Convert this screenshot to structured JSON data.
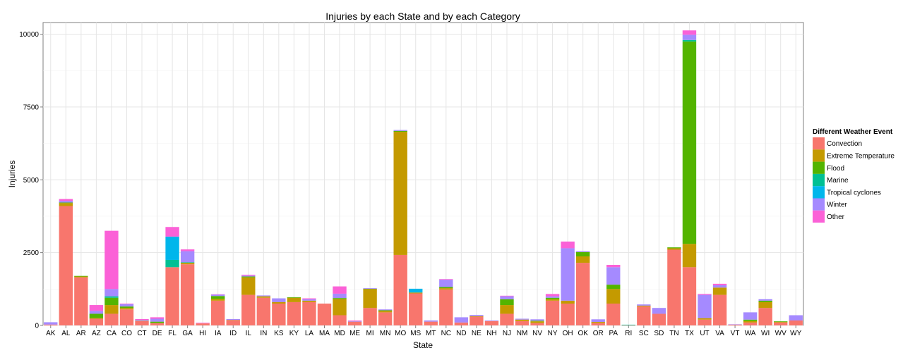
{
  "chart_data": {
    "type": "bar",
    "stacked": true,
    "title": "Injuries by each State and by each Category",
    "xlabel": "State",
    "ylabel": "Injuries",
    "ylim": [
      0,
      10400
    ],
    "yticks": [
      0,
      2500,
      5000,
      7500,
      10000
    ],
    "grid": true,
    "legend_placement": "right",
    "legend_title": "Different Weather Event",
    "categories": [
      "AK",
      "AL",
      "AR",
      "AZ",
      "CA",
      "CO",
      "CT",
      "DE",
      "FL",
      "GA",
      "HI",
      "IA",
      "ID",
      "IL",
      "IN",
      "KS",
      "KY",
      "LA",
      "MA",
      "MD",
      "ME",
      "MI",
      "MN",
      "MO",
      "MS",
      "MT",
      "NC",
      "ND",
      "NE",
      "NH",
      "NJ",
      "NM",
      "NV",
      "NY",
      "OH",
      "OK",
      "OR",
      "PA",
      "RI",
      "SC",
      "SD",
      "TN",
      "TX",
      "UT",
      "VA",
      "VT",
      "WA",
      "WI",
      "WV",
      "WY"
    ],
    "series": [
      {
        "name": "Convection",
        "color": "#F8766D",
        "values": [
          30,
          4100,
          1650,
          230,
          400,
          550,
          150,
          80,
          2000,
          2100,
          70,
          850,
          180,
          1050,
          950,
          750,
          800,
          800,
          750,
          350,
          130,
          600,
          450,
          2420,
          1100,
          130,
          1230,
          100,
          300,
          150,
          400,
          150,
          80,
          850,
          750,
          2150,
          80,
          750,
          5,
          650,
          400,
          2600,
          2000,
          200,
          1050,
          30,
          100,
          600,
          100,
          170
        ]
      },
      {
        "name": "Extreme Temperature",
        "color": "#C49A00",
        "values": [
          0,
          100,
          30,
          20,
          300,
          50,
          10,
          0,
          0,
          50,
          0,
          60,
          10,
          600,
          50,
          50,
          150,
          50,
          0,
          550,
          0,
          650,
          50,
          4230,
          30,
          0,
          50,
          0,
          20,
          0,
          300,
          50,
          60,
          50,
          100,
          220,
          40,
          500,
          0,
          30,
          0,
          50,
          800,
          50,
          250,
          0,
          50,
          200,
          20,
          0
        ]
      },
      {
        "name": "Flood",
        "color": "#53B400",
        "values": [
          0,
          20,
          20,
          150,
          250,
          50,
          0,
          50,
          0,
          0,
          0,
          100,
          0,
          30,
          0,
          0,
          20,
          0,
          0,
          40,
          0,
          10,
          20,
          30,
          0,
          0,
          40,
          0,
          0,
          0,
          200,
          0,
          20,
          50,
          0,
          150,
          0,
          150,
          0,
          0,
          0,
          30,
          6950,
          0,
          0,
          0,
          50,
          50,
          20,
          0
        ]
      },
      {
        "name": "Marine",
        "color": "#00C094",
        "values": [
          0,
          0,
          0,
          0,
          50,
          0,
          0,
          0,
          250,
          20,
          0,
          0,
          0,
          0,
          0,
          0,
          0,
          0,
          0,
          0,
          0,
          0,
          0,
          0,
          0,
          0,
          0,
          0,
          0,
          0,
          0,
          0,
          0,
          0,
          0,
          0,
          0,
          0,
          20,
          0,
          0,
          0,
          50,
          0,
          0,
          0,
          0,
          0,
          0,
          0
        ]
      },
      {
        "name": "Tropical cyclones",
        "color": "#00B6EB",
        "values": [
          0,
          0,
          0,
          0,
          0,
          0,
          0,
          0,
          800,
          0,
          0,
          0,
          0,
          0,
          0,
          0,
          0,
          0,
          0,
          0,
          0,
          0,
          0,
          0,
          130,
          0,
          0,
          0,
          0,
          0,
          0,
          0,
          0,
          0,
          0,
          0,
          0,
          0,
          0,
          0,
          0,
          0,
          0,
          0,
          0,
          0,
          0,
          0,
          0,
          0
        ]
      },
      {
        "name": "Winter",
        "color": "#A58AFF",
        "values": [
          80,
          60,
          0,
          100,
          250,
          80,
          30,
          100,
          0,
          380,
          0,
          50,
          30,
          30,
          30,
          130,
          0,
          50,
          0,
          150,
          20,
          20,
          30,
          30,
          0,
          40,
          250,
          180,
          40,
          20,
          100,
          30,
          50,
          50,
          1800,
          30,
          90,
          600,
          0,
          40,
          200,
          0,
          180,
          800,
          80,
          10,
          250,
          50,
          0,
          180
        ]
      },
      {
        "name": "Other",
        "color": "#FB61D7",
        "values": [
          0,
          60,
          0,
          200,
          2000,
          20,
          30,
          50,
          330,
          60,
          20,
          10,
          0,
          30,
          0,
          0,
          0,
          30,
          0,
          250,
          20,
          0,
          0,
          0,
          0,
          0,
          20,
          0,
          0,
          0,
          20,
          0,
          0,
          80,
          230,
          0,
          0,
          80,
          0,
          0,
          0,
          0,
          150,
          30,
          50,
          0,
          0,
          0,
          0,
          0
        ]
      }
    ]
  }
}
